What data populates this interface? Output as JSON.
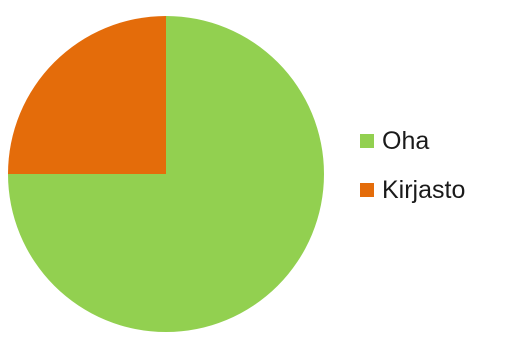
{
  "chart_data": {
    "type": "pie",
    "title": "",
    "start_angle_deg": 0,
    "direction": "clockwise",
    "legend_position": "right",
    "series": [
      {
        "name": "Oha",
        "value": 75,
        "color": "#92d050"
      },
      {
        "name": "Kirjasto",
        "value": 25,
        "color": "#e46c0a"
      }
    ]
  }
}
